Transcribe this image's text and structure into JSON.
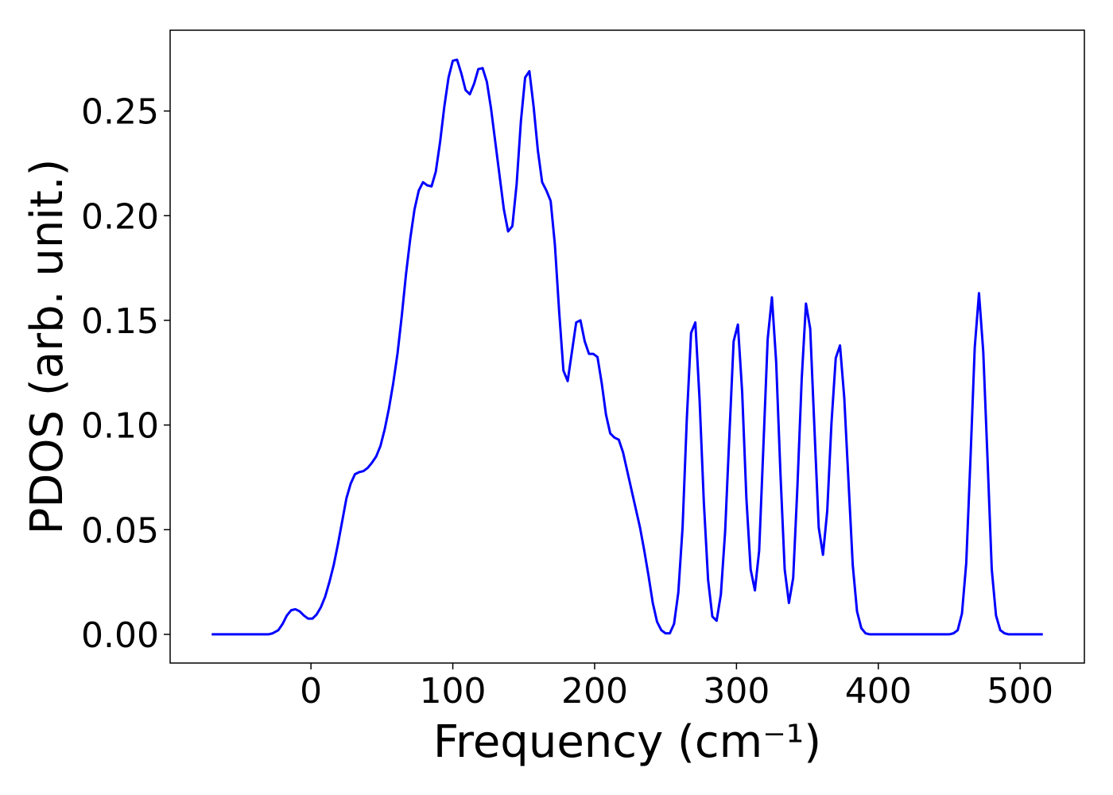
{
  "chart_data": {
    "type": "line",
    "xlabel": "Frequency (cm⁻¹)",
    "ylabel": "PDOS (arb. unit.)",
    "xlim": [
      -99.3,
      545.3
    ],
    "ylim": [
      -0.0137,
      0.2886
    ],
    "xticks": [
      0,
      100,
      200,
      300,
      400,
      500
    ],
    "yticks": [
      {
        "value": 0,
        "label": "0.00"
      },
      {
        "value": 0.05,
        "label": "0.05"
      },
      {
        "value": 0.1,
        "label": "0.10"
      },
      {
        "value": 0.15,
        "label": "0.15"
      },
      {
        "value": 0.2,
        "label": "0.20"
      },
      {
        "value": 0.25,
        "label": "0.25"
      }
    ],
    "grid": false,
    "x": [
      -70,
      -30,
      -27,
      -23,
      -20,
      -17,
      -14,
      -11,
      -8,
      -5,
      -2,
      1,
      4,
      7,
      10,
      13,
      16,
      19,
      22,
      25,
      28,
      31,
      34,
      37,
      40,
      43,
      46,
      49,
      52,
      55,
      58,
      61,
      64,
      67,
      70,
      73,
      76,
      79,
      82,
      85,
      88,
      91,
      94,
      97,
      100,
      103,
      106,
      109,
      112,
      115,
      118,
      121,
      124,
      127,
      130,
      133,
      136,
      139,
      142,
      145,
      148,
      151,
      154,
      157,
      160,
      163,
      166,
      169,
      172,
      175,
      178,
      181,
      184,
      187,
      190,
      193,
      196,
      199,
      202,
      205,
      208,
      211,
      214,
      217,
      220,
      223,
      226,
      229,
      232,
      235,
      238,
      241,
      244,
      247,
      250,
      253,
      256,
      259,
      262,
      265,
      268,
      271,
      274,
      277,
      280,
      283,
      286,
      289,
      292,
      295,
      298,
      301,
      304,
      307,
      310,
      313,
      316,
      319,
      322,
      325,
      328,
      331,
      334,
      337,
      340,
      343,
      346,
      349,
      352,
      355,
      358,
      361,
      364,
      367,
      370,
      373,
      376,
      379,
      382,
      385,
      388,
      391,
      394,
      450,
      453,
      456,
      459,
      462,
      465,
      468,
      471,
      474,
      477,
      480,
      483,
      486,
      489,
      492,
      516
    ],
    "series": [
      {
        "color": "#0000ff",
        "values": [
          0,
          0,
          0.0005,
          0.002,
          0.005,
          0.009,
          0.0115,
          0.012,
          0.011,
          0.009,
          0.0075,
          0.0075,
          0.0095,
          0.013,
          0.018,
          0.025,
          0.033,
          0.043,
          0.054,
          0.065,
          0.072,
          0.0765,
          0.0775,
          0.078,
          0.0795,
          0.082,
          0.085,
          0.09,
          0.098,
          0.108,
          0.12,
          0.134,
          0.152,
          0.172,
          0.189,
          0.203,
          0.212,
          0.216,
          0.2145,
          0.214,
          0.221,
          0.235,
          0.252,
          0.266,
          0.274,
          0.2745,
          0.268,
          0.26,
          0.258,
          0.263,
          0.27,
          0.2705,
          0.264,
          0.251,
          0.235,
          0.219,
          0.203,
          0.1925,
          0.195,
          0.215,
          0.245,
          0.266,
          0.269,
          0.252,
          0.231,
          0.216,
          0.212,
          0.207,
          0.186,
          0.154,
          0.126,
          0.121,
          0.135,
          0.149,
          0.15,
          0.14,
          0.134,
          0.134,
          0.1325,
          0.12,
          0.105,
          0.096,
          0.094,
          0.093,
          0.087,
          0.078,
          0.069,
          0.06,
          0.051,
          0.04,
          0.028,
          0.015,
          0.006,
          0.002,
          0.0005,
          0.0005,
          0.005,
          0.02,
          0.051,
          0.103,
          0.144,
          0.149,
          0.112,
          0.063,
          0.026,
          0.0085,
          0.0065,
          0.019,
          0.049,
          0.095,
          0.14,
          0.148,
          0.116,
          0.065,
          0.031,
          0.021,
          0.04,
          0.09,
          0.141,
          0.161,
          0.13,
          0.077,
          0.031,
          0.015,
          0.027,
          0.071,
          0.122,
          0.158,
          0.146,
          0.098,
          0.051,
          0.038,
          0.059,
          0.101,
          0.132,
          0.138,
          0.113,
          0.073,
          0.033,
          0.011,
          0.003,
          0.0005,
          0,
          0,
          0.0005,
          0.002,
          0.01,
          0.034,
          0.084,
          0.137,
          0.163,
          0.135,
          0.084,
          0.031,
          0.009,
          0.002,
          0.0005,
          0,
          0
        ]
      }
    ]
  }
}
